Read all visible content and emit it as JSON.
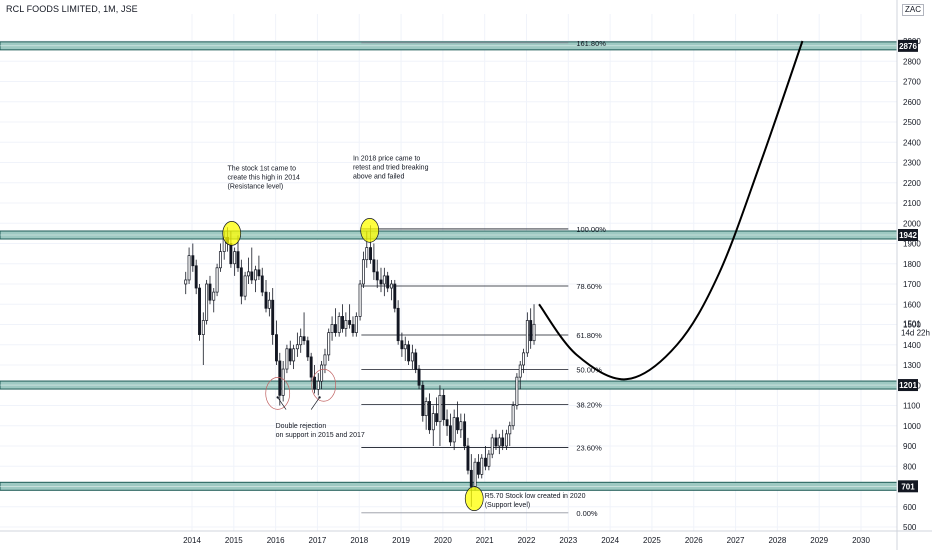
{
  "header": {
    "symbol_title": "RCL FOODS LIMITED, 1M, JSE",
    "currency": "ZAC",
    "countdown_price": "1501",
    "countdown_time": "14d 22h"
  },
  "colors": {
    "up": "#131722",
    "down": "#131722",
    "zone_fill": "#9ec9c2",
    "zone_border": "#1e5b56",
    "badge": "#131722",
    "highlight": "#ffff00"
  },
  "chart_data": {
    "type": "candlestick",
    "title": "RCL FOODS LIMITED, 1M, JSE",
    "x_ticks": [
      "2014",
      "2015",
      "2016",
      "2017",
      "2018",
      "2019",
      "2020",
      "2021",
      "2022",
      "2023",
      "2024",
      "2025",
      "2026",
      "2027",
      "2028",
      "2029",
      "2030"
    ],
    "y_ticks": [
      500,
      600,
      700,
      800,
      900,
      1000,
      1100,
      1200,
      1300,
      1400,
      1500,
      1600,
      1700,
      1800,
      1900,
      2000,
      2100,
      2200,
      2300,
      2400,
      2500,
      2600,
      2700,
      2800,
      2900
    ],
    "ylim": [
      480,
      2930
    ],
    "xlim": [
      2013.2,
      2031.0
    ],
    "support_resistance": [
      {
        "value": 2876,
        "label": "2876"
      },
      {
        "value": 1942,
        "label": "1942"
      },
      {
        "value": 1201,
        "label": "1201"
      },
      {
        "value": 701,
        "label": "701"
      }
    ],
    "fibonacci": {
      "start_x": 2018.05,
      "end_x": 2023.0,
      "levels": [
        {
          "label": "161.80%",
          "value": 2891
        },
        {
          "label": "100.00%",
          "value": 1972
        },
        {
          "label": "78.60%",
          "value": 1690
        },
        {
          "label": "61.80%",
          "value": 1448
        },
        {
          "label": "50.00%",
          "value": 1277
        },
        {
          "label": "38.20%",
          "value": 1105
        },
        {
          "label": "23.60%",
          "value": 893
        },
        {
          "label": "0.00%",
          "value": 570
        }
      ]
    },
    "projection_curve": [
      [
        2022.3,
        1600
      ],
      [
        2023.2,
        1350
      ],
      [
        2024.4,
        1230
      ],
      [
        2025.6,
        1400
      ],
      [
        2026.6,
        1750
      ],
      [
        2027.6,
        2300
      ],
      [
        2028.6,
        2900
      ]
    ],
    "candles": [
      {
        "t": 2013.85,
        "o": 1700,
        "h": 1760,
        "l": 1650,
        "c": 1720
      },
      {
        "t": 2013.93,
        "o": 1720,
        "h": 1880,
        "l": 1700,
        "c": 1840
      },
      {
        "t": 2014.02,
        "o": 1840,
        "h": 1900,
        "l": 1760,
        "c": 1790
      },
      {
        "t": 2014.1,
        "o": 1790,
        "h": 1820,
        "l": 1650,
        "c": 1680
      },
      {
        "t": 2014.18,
        "o": 1680,
        "h": 1700,
        "l": 1420,
        "c": 1450
      },
      {
        "t": 2014.27,
        "o": 1450,
        "h": 1560,
        "l": 1300,
        "c": 1520
      },
      {
        "t": 2014.35,
        "o": 1520,
        "h": 1720,
        "l": 1500,
        "c": 1700
      },
      {
        "t": 2014.43,
        "o": 1700,
        "h": 1740,
        "l": 1600,
        "c": 1620
      },
      {
        "t": 2014.52,
        "o": 1620,
        "h": 1680,
        "l": 1560,
        "c": 1660
      },
      {
        "t": 2014.6,
        "o": 1660,
        "h": 1800,
        "l": 1640,
        "c": 1780
      },
      {
        "t": 2014.68,
        "o": 1780,
        "h": 1900,
        "l": 1760,
        "c": 1860
      },
      {
        "t": 2014.77,
        "o": 1860,
        "h": 1960,
        "l": 1820,
        "c": 1930
      },
      {
        "t": 2014.85,
        "o": 1930,
        "h": 1980,
        "l": 1860,
        "c": 1900
      },
      {
        "t": 2014.93,
        "o": 1900,
        "h": 1960,
        "l": 1780,
        "c": 1800
      },
      {
        "t": 2015.02,
        "o": 1800,
        "h": 1880,
        "l": 1740,
        "c": 1860
      },
      {
        "t": 2015.1,
        "o": 1860,
        "h": 1940,
        "l": 1760,
        "c": 1780
      },
      {
        "t": 2015.18,
        "o": 1780,
        "h": 1820,
        "l": 1600,
        "c": 1640
      },
      {
        "t": 2015.27,
        "o": 1640,
        "h": 1760,
        "l": 1620,
        "c": 1740
      },
      {
        "t": 2015.35,
        "o": 1740,
        "h": 1830,
        "l": 1700,
        "c": 1760
      },
      {
        "t": 2015.43,
        "o": 1760,
        "h": 1880,
        "l": 1700,
        "c": 1720
      },
      {
        "t": 2015.52,
        "o": 1720,
        "h": 1790,
        "l": 1660,
        "c": 1770
      },
      {
        "t": 2015.6,
        "o": 1770,
        "h": 1840,
        "l": 1720,
        "c": 1740
      },
      {
        "t": 2015.68,
        "o": 1740,
        "h": 1780,
        "l": 1640,
        "c": 1660
      },
      {
        "t": 2015.77,
        "o": 1660,
        "h": 1720,
        "l": 1560,
        "c": 1580
      },
      {
        "t": 2015.85,
        "o": 1580,
        "h": 1660,
        "l": 1540,
        "c": 1620
      },
      {
        "t": 2015.93,
        "o": 1620,
        "h": 1680,
        "l": 1400,
        "c": 1450
      },
      {
        "t": 2016.02,
        "o": 1450,
        "h": 1520,
        "l": 1300,
        "c": 1320
      },
      {
        "t": 2016.1,
        "o": 1320,
        "h": 1360,
        "l": 1100,
        "c": 1150
      },
      {
        "t": 2016.18,
        "o": 1150,
        "h": 1320,
        "l": 1120,
        "c": 1280
      },
      {
        "t": 2016.27,
        "o": 1280,
        "h": 1400,
        "l": 1260,
        "c": 1380
      },
      {
        "t": 2016.35,
        "o": 1380,
        "h": 1420,
        "l": 1300,
        "c": 1320
      },
      {
        "t": 2016.43,
        "o": 1320,
        "h": 1400,
        "l": 1280,
        "c": 1380
      },
      {
        "t": 2016.52,
        "o": 1380,
        "h": 1460,
        "l": 1340,
        "c": 1400
      },
      {
        "t": 2016.6,
        "o": 1400,
        "h": 1480,
        "l": 1360,
        "c": 1440
      },
      {
        "t": 2016.68,
        "o": 1440,
        "h": 1560,
        "l": 1400,
        "c": 1420
      },
      {
        "t": 2016.77,
        "o": 1420,
        "h": 1440,
        "l": 1320,
        "c": 1340
      },
      {
        "t": 2016.85,
        "o": 1340,
        "h": 1360,
        "l": 1220,
        "c": 1240
      },
      {
        "t": 2016.93,
        "o": 1240,
        "h": 1300,
        "l": 1160,
        "c": 1180
      },
      {
        "t": 2017.02,
        "o": 1180,
        "h": 1260,
        "l": 1150,
        "c": 1220
      },
      {
        "t": 2017.1,
        "o": 1220,
        "h": 1320,
        "l": 1180,
        "c": 1300
      },
      {
        "t": 2017.18,
        "o": 1300,
        "h": 1380,
        "l": 1260,
        "c": 1350
      },
      {
        "t": 2017.27,
        "o": 1350,
        "h": 1480,
        "l": 1320,
        "c": 1460
      },
      {
        "t": 2017.35,
        "o": 1460,
        "h": 1540,
        "l": 1420,
        "c": 1500
      },
      {
        "t": 2017.43,
        "o": 1500,
        "h": 1580,
        "l": 1440,
        "c": 1460
      },
      {
        "t": 2017.52,
        "o": 1460,
        "h": 1560,
        "l": 1440,
        "c": 1540
      },
      {
        "t": 2017.6,
        "o": 1540,
        "h": 1600,
        "l": 1460,
        "c": 1480
      },
      {
        "t": 2017.68,
        "o": 1480,
        "h": 1560,
        "l": 1440,
        "c": 1520
      },
      {
        "t": 2017.77,
        "o": 1520,
        "h": 1600,
        "l": 1480,
        "c": 1500
      },
      {
        "t": 2017.85,
        "o": 1500,
        "h": 1540,
        "l": 1440,
        "c": 1460
      },
      {
        "t": 2017.93,
        "o": 1460,
        "h": 1560,
        "l": 1440,
        "c": 1540
      },
      {
        "t": 2018.02,
        "o": 1540,
        "h": 1720,
        "l": 1520,
        "c": 1700
      },
      {
        "t": 2018.1,
        "o": 1700,
        "h": 1860,
        "l": 1680,
        "c": 1820
      },
      {
        "t": 2018.18,
        "o": 1820,
        "h": 1960,
        "l": 1780,
        "c": 1880
      },
      {
        "t": 2018.27,
        "o": 1880,
        "h": 1990,
        "l": 1800,
        "c": 1820
      },
      {
        "t": 2018.35,
        "o": 1820,
        "h": 1900,
        "l": 1720,
        "c": 1760
      },
      {
        "t": 2018.43,
        "o": 1760,
        "h": 1820,
        "l": 1680,
        "c": 1720
      },
      {
        "t": 2018.52,
        "o": 1720,
        "h": 1780,
        "l": 1660,
        "c": 1700
      },
      {
        "t": 2018.6,
        "o": 1700,
        "h": 1780,
        "l": 1640,
        "c": 1740
      },
      {
        "t": 2018.68,
        "o": 1740,
        "h": 1760,
        "l": 1660,
        "c": 1680
      },
      {
        "t": 2018.77,
        "o": 1680,
        "h": 1720,
        "l": 1620,
        "c": 1700
      },
      {
        "t": 2018.85,
        "o": 1700,
        "h": 1720,
        "l": 1560,
        "c": 1580
      },
      {
        "t": 2018.93,
        "o": 1580,
        "h": 1620,
        "l": 1400,
        "c": 1420
      },
      {
        "t": 2019.02,
        "o": 1420,
        "h": 1460,
        "l": 1340,
        "c": 1380
      },
      {
        "t": 2019.1,
        "o": 1380,
        "h": 1440,
        "l": 1320,
        "c": 1400
      },
      {
        "t": 2019.18,
        "o": 1400,
        "h": 1420,
        "l": 1300,
        "c": 1320
      },
      {
        "t": 2019.27,
        "o": 1320,
        "h": 1400,
        "l": 1280,
        "c": 1360
      },
      {
        "t": 2019.35,
        "o": 1360,
        "h": 1380,
        "l": 1260,
        "c": 1280
      },
      {
        "t": 2019.43,
        "o": 1280,
        "h": 1300,
        "l": 1180,
        "c": 1200
      },
      {
        "t": 2019.52,
        "o": 1200,
        "h": 1220,
        "l": 1020,
        "c": 1050
      },
      {
        "t": 2019.6,
        "o": 1050,
        "h": 1140,
        "l": 980,
        "c": 1120
      },
      {
        "t": 2019.68,
        "o": 1120,
        "h": 1160,
        "l": 960,
        "c": 980
      },
      {
        "t": 2019.77,
        "o": 980,
        "h": 1100,
        "l": 900,
        "c": 1060
      },
      {
        "t": 2019.85,
        "o": 1060,
        "h": 1140,
        "l": 1000,
        "c": 1020
      },
      {
        "t": 2019.93,
        "o": 1020,
        "h": 1200,
        "l": 900,
        "c": 1150
      },
      {
        "t": 2020.02,
        "o": 1150,
        "h": 1180,
        "l": 1000,
        "c": 1030
      },
      {
        "t": 2020.1,
        "o": 1030,
        "h": 1080,
        "l": 950,
        "c": 1000
      },
      {
        "t": 2020.18,
        "o": 1000,
        "h": 1060,
        "l": 900,
        "c": 920
      },
      {
        "t": 2020.27,
        "o": 920,
        "h": 1080,
        "l": 880,
        "c": 1040
      },
      {
        "t": 2020.35,
        "o": 1040,
        "h": 1120,
        "l": 960,
        "c": 980
      },
      {
        "t": 2020.43,
        "o": 980,
        "h": 1060,
        "l": 940,
        "c": 1020
      },
      {
        "t": 2020.52,
        "o": 1020,
        "h": 1060,
        "l": 880,
        "c": 900
      },
      {
        "t": 2020.6,
        "o": 900,
        "h": 940,
        "l": 760,
        "c": 780
      },
      {
        "t": 2020.68,
        "o": 780,
        "h": 860,
        "l": 600,
        "c": 700
      },
      {
        "t": 2020.77,
        "o": 700,
        "h": 840,
        "l": 680,
        "c": 820
      },
      {
        "t": 2020.85,
        "o": 820,
        "h": 860,
        "l": 740,
        "c": 760
      },
      {
        "t": 2020.93,
        "o": 760,
        "h": 860,
        "l": 740,
        "c": 840
      },
      {
        "t": 2021.02,
        "o": 840,
        "h": 900,
        "l": 780,
        "c": 800
      },
      {
        "t": 2021.1,
        "o": 800,
        "h": 880,
        "l": 780,
        "c": 860
      },
      {
        "t": 2021.18,
        "o": 860,
        "h": 960,
        "l": 840,
        "c": 940
      },
      {
        "t": 2021.27,
        "o": 940,
        "h": 980,
        "l": 880,
        "c": 900
      },
      {
        "t": 2021.35,
        "o": 900,
        "h": 960,
        "l": 860,
        "c": 940
      },
      {
        "t": 2021.43,
        "o": 940,
        "h": 980,
        "l": 880,
        "c": 900
      },
      {
        "t": 2021.52,
        "o": 900,
        "h": 980,
        "l": 880,
        "c": 960
      },
      {
        "t": 2021.6,
        "o": 960,
        "h": 1020,
        "l": 900,
        "c": 1000
      },
      {
        "t": 2021.68,
        "o": 1000,
        "h": 1120,
        "l": 980,
        "c": 1100
      },
      {
        "t": 2021.77,
        "o": 1100,
        "h": 1260,
        "l": 1080,
        "c": 1240
      },
      {
        "t": 2021.85,
        "o": 1240,
        "h": 1320,
        "l": 1180,
        "c": 1300
      },
      {
        "t": 2021.93,
        "o": 1300,
        "h": 1380,
        "l": 1260,
        "c": 1360
      },
      {
        "t": 2022.02,
        "o": 1360,
        "h": 1560,
        "l": 1340,
        "c": 1520
      },
      {
        "t": 2022.1,
        "o": 1520,
        "h": 1580,
        "l": 1380,
        "c": 1420
      },
      {
        "t": 2022.18,
        "o": 1420,
        "h": 1600,
        "l": 1400,
        "c": 1501
      }
    ]
  },
  "annotations": [
    {
      "key": "ann_2014",
      "lines": [
        "The stock 1st came to",
        "create this high in 2014",
        "(Resistance level)"
      ],
      "x": 2014.85,
      "y": 2260
    },
    {
      "key": "ann_2018",
      "lines": [
        "In 2018 price came to",
        "retest and tried breaking",
        "above and failed"
      ],
      "x": 2017.85,
      "y": 2310
    },
    {
      "key": "ann_double",
      "lines": [
        "Double rejection",
        "on support in 2015 and 2017"
      ],
      "x": 2016.0,
      "y": 990
    },
    {
      "key": "ann_low",
      "lines": [
        "R5.70 Stock low created in 2020",
        "(Support level)"
      ],
      "x": 2021.0,
      "y": 642
    }
  ],
  "highlight_circles": [
    {
      "x": 2014.95,
      "y": 1950,
      "kind": "yellow"
    },
    {
      "x": 2018.25,
      "y": 1965,
      "kind": "yellow"
    },
    {
      "x": 2020.75,
      "y": 640,
      "kind": "yellow"
    },
    {
      "x": 2016.05,
      "y": 1160,
      "kind": "red"
    },
    {
      "x": 2017.15,
      "y": 1200,
      "kind": "red"
    }
  ]
}
